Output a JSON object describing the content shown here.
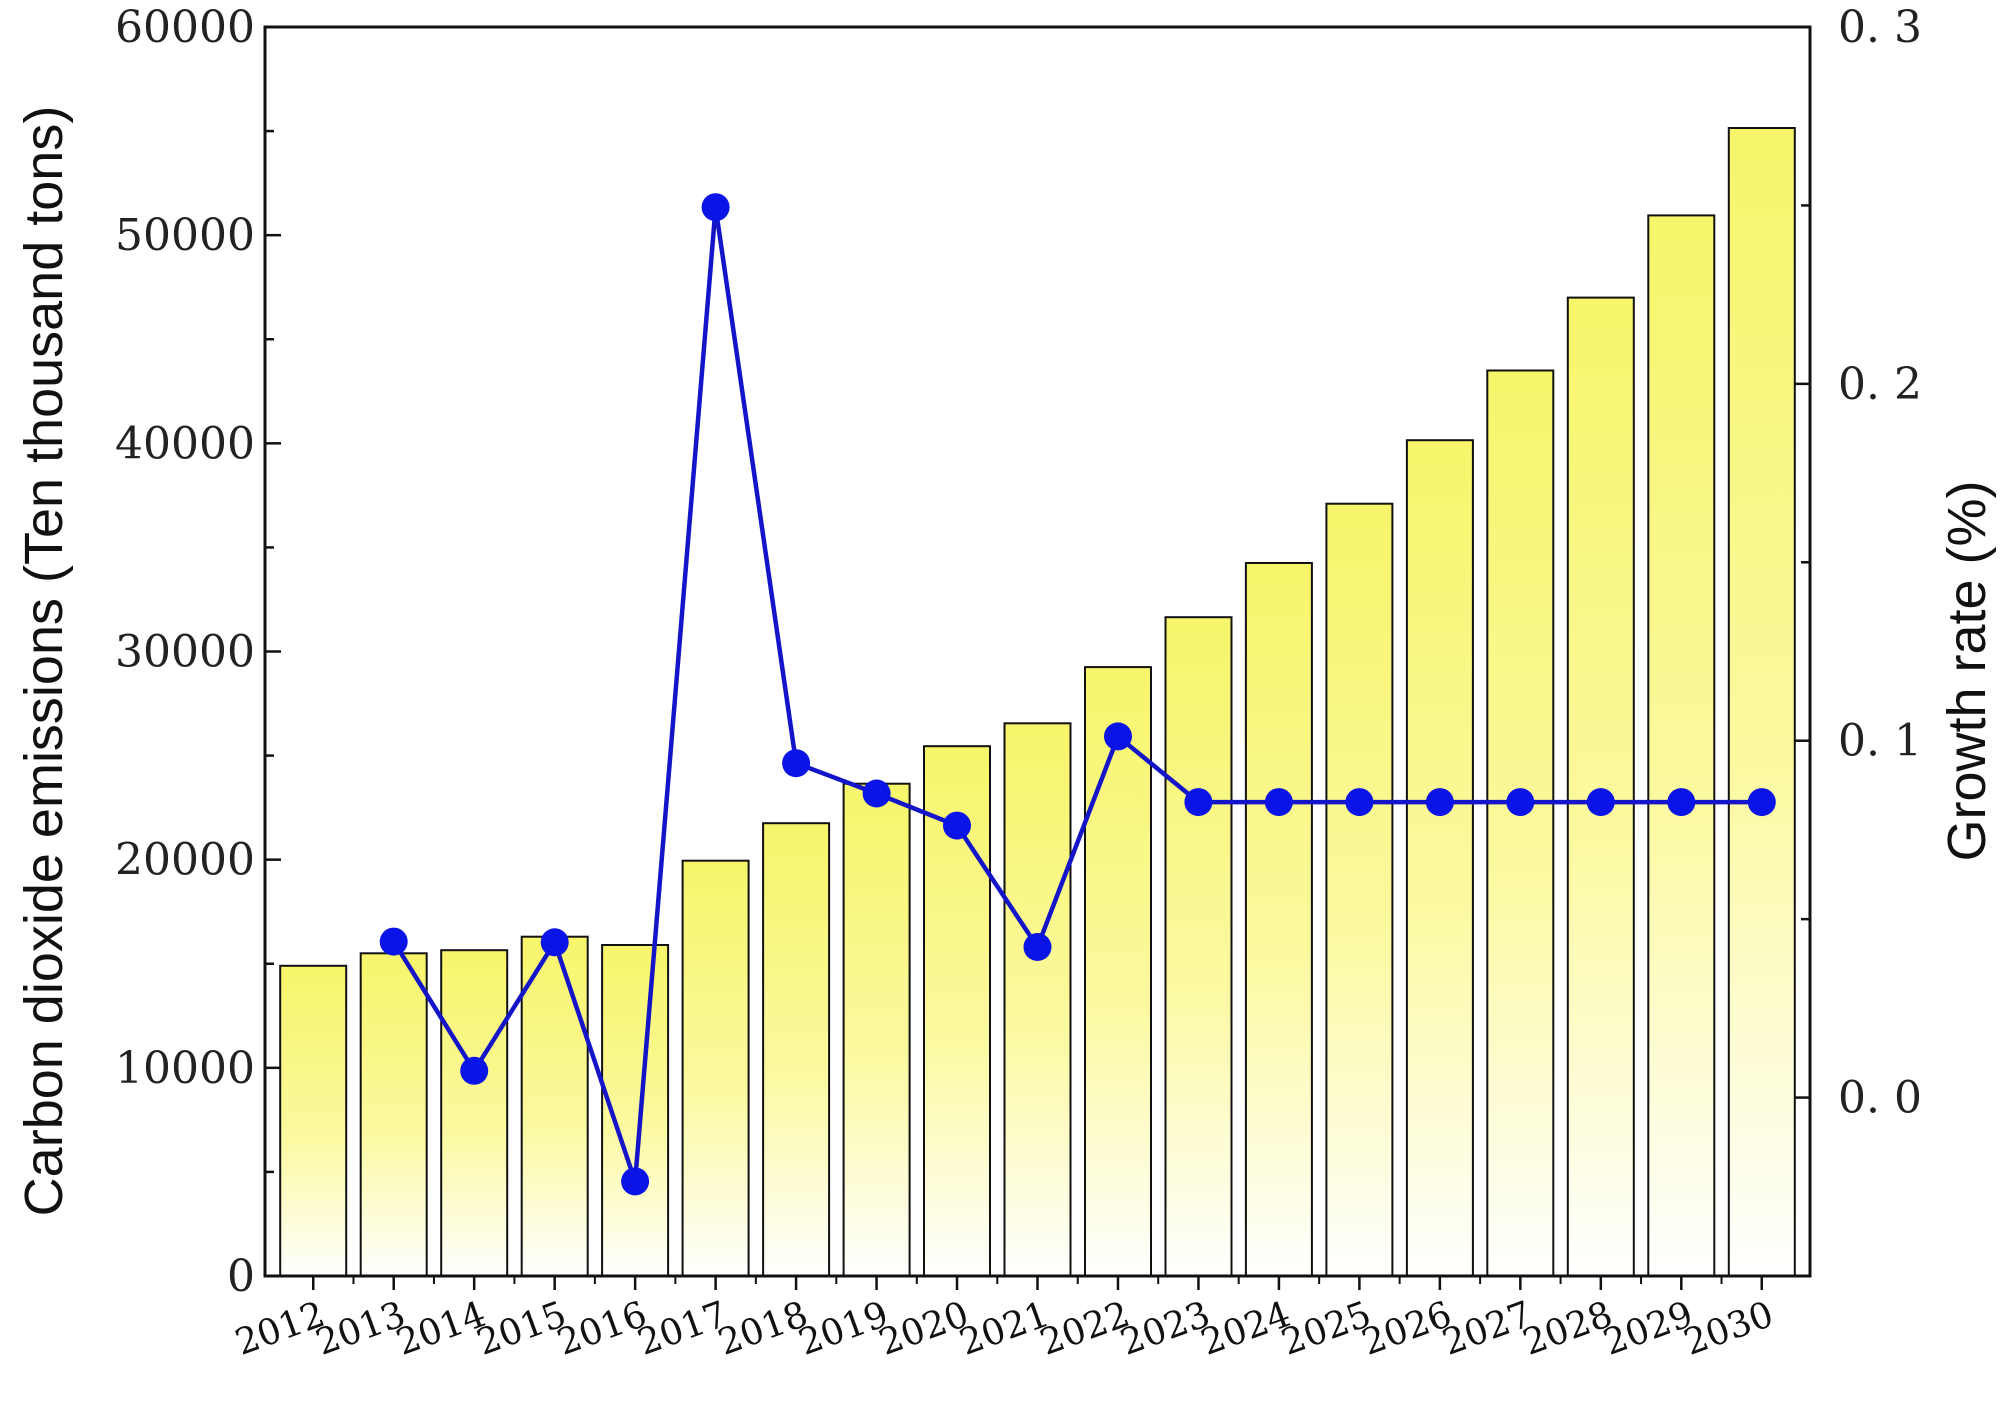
{
  "chart_data": {
    "type": "bar",
    "xlabel": "",
    "ylabel": "Carbon dioxide emissions (Ten thousand tons)",
    "y2label": "Growth rate (%)",
    "ylim": [
      0,
      60000
    ],
    "y2lim": [
      -0.05,
      0.3
    ],
    "yticks": [
      "0",
      "10000",
      "20000",
      "30000",
      "40000",
      "50000",
      "60000"
    ],
    "y2ticks": [
      "0. 0",
      "0. 1",
      "0. 2",
      "0. 3"
    ],
    "grid": false,
    "legend": "none",
    "categories": [
      "2012",
      "2013",
      "2014",
      "2015",
      "2016",
      "2017",
      "2018",
      "2019",
      "2020",
      "2021",
      "2022",
      "2023",
      "2024",
      "2025",
      "2026",
      "2027",
      "2028",
      "2029",
      "2030"
    ],
    "series": [
      {
        "type": "bar",
        "axis": "left",
        "color": "#f7f56a",
        "values": [
          14900,
          15500,
          15650,
          16300,
          15900,
          19950,
          21750,
          23650,
          25450,
          26550,
          29250,
          31650,
          34250,
          37100,
          40150,
          43500,
          47000,
          50950,
          55150
        ]
      },
      {
        "type": "line",
        "axis": "right",
        "color": "#1414c8",
        "marker_color": "#0a14e6",
        "x": [
          "2013",
          "2014",
          "2015",
          "2016",
          "2017",
          "2018",
          "2019",
          "2020",
          "2021",
          "2022",
          "2023",
          "2024",
          "2025",
          "2026",
          "2027",
          "2028",
          "2029",
          "2030"
        ],
        "values": [
          0.0437,
          0.0075,
          0.0435,
          -0.0235,
          0.2495,
          0.0937,
          0.0852,
          0.0762,
          0.0422,
          0.1012,
          0.0828,
          0.0828,
          0.0828,
          0.0828,
          0.0828,
          0.0828,
          0.0828,
          0.0828
        ]
      }
    ]
  }
}
